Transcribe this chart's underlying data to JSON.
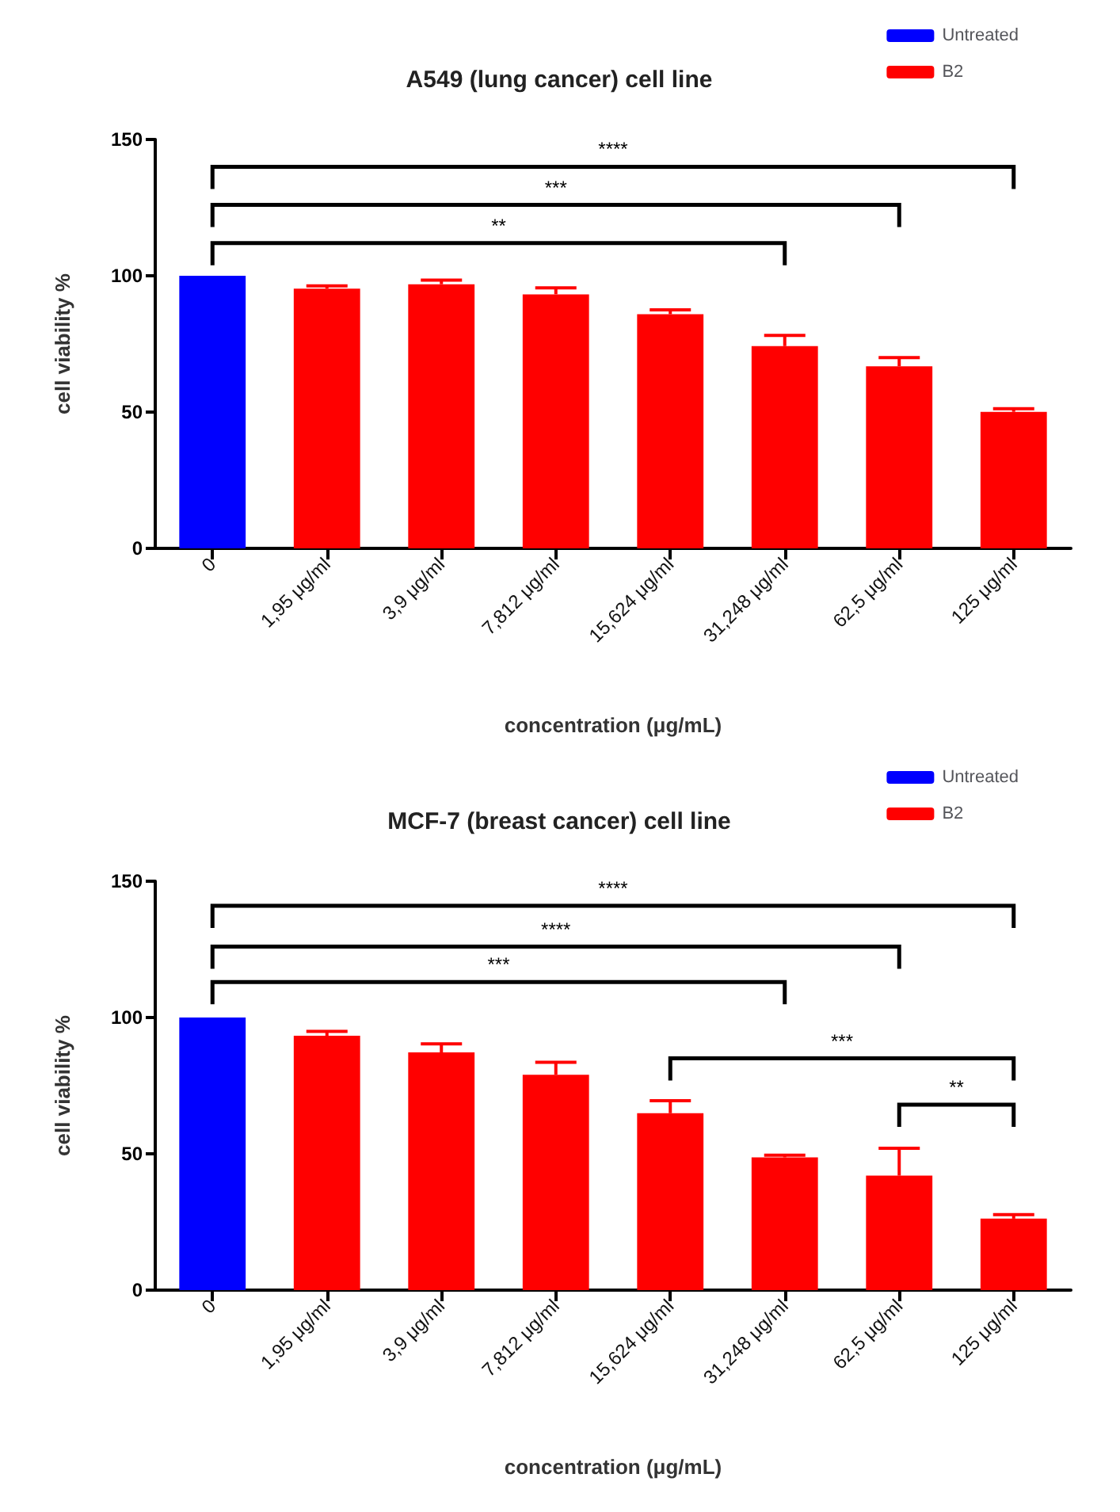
{
  "chart_data": [
    {
      "type": "bar",
      "title": "A549 (lung cancer) cell line",
      "xlabel": "concentration (μg/mL)",
      "ylabel": "cell viability %",
      "categories": [
        "0",
        "1,95 μg/ml",
        "3,9 μg/ml",
        "7,812 μg/ml",
        "15,624 μg/ml",
        "31,248 μg/ml",
        "62,5 μg/ml",
        "125 μg/ml"
      ],
      "stacked": true,
      "series": [
        {
          "name": "Untreated",
          "color": "#0000ff",
          "values": [
            100,
            null,
            null,
            null,
            null,
            null,
            null,
            null
          ]
        },
        {
          "name": "B2",
          "color": "#ff0000",
          "values": [
            null,
            95.3,
            96.9,
            93.2,
            85.9,
            74.2,
            66.8,
            50.1
          ],
          "errors": [
            null,
            [
              95.3,
              96.3
            ],
            [
              96.9,
              98.4
            ],
            [
              93.2,
              95.6
            ],
            [
              85.9,
              87.5
            ],
            [
              74.2,
              78.1
            ],
            [
              66.8,
              70
            ],
            [
              50.1,
              51.2
            ]
          ]
        }
      ],
      "ylim": [
        0,
        150
      ],
      "yticks": [
        0,
        50,
        100,
        150
      ],
      "grid": false,
      "legend": "top right",
      "annotations": [
        "****",
        "***",
        "**"
      ]
    },
    {
      "type": "bar",
      "title": "MCF-7 (breast cancer) cell line",
      "xlabel": "concentration (μg/mL)",
      "ylabel": "cell viability %",
      "categories": [
        "0",
        "1,95 μg/ml",
        "3,9 μg/ml",
        "7,812 μg/ml",
        "15,624 μg/ml",
        "31,248 μg/ml",
        "62,5 μg/ml",
        "125 μg/ml"
      ],
      "stacked": true,
      "series": [
        {
          "name": "Untreated",
          "color": "#0000ff",
          "values": [
            100,
            null,
            null,
            null,
            null,
            null,
            null,
            null
          ]
        },
        {
          "name": "B2",
          "color": "#ff0000",
          "values": [
            null,
            93.3,
            87.2,
            79,
            64.9,
            48.7,
            42,
            26.2
          ],
          "errors": [
            null,
            [
              93.3,
              94.9
            ],
            [
              87.2,
              90.3
            ],
            [
              79,
              83.6
            ],
            [
              64.9,
              69.5
            ],
            [
              48.7,
              49.5
            ],
            [
              42,
              52
            ],
            [
              26.2,
              27.7
            ]
          ]
        }
      ],
      "ylim": [
        0,
        150
      ],
      "yticks": [
        0,
        50,
        100,
        150
      ],
      "grid": false,
      "legend": "top right",
      "annotations": [
        "****",
        "****",
        "***",
        "***",
        "**"
      ]
    }
  ]
}
